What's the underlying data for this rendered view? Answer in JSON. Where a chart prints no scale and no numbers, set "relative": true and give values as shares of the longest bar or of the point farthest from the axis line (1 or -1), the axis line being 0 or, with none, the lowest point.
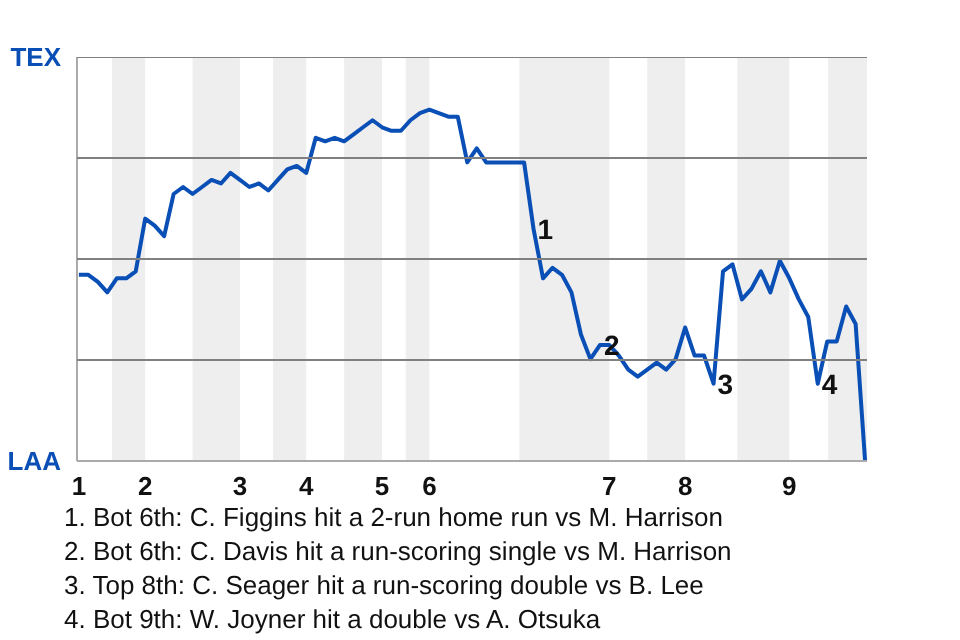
{
  "chart_data": {
    "type": "line",
    "marker": "none",
    "line_style": "solid",
    "grid": "y",
    "relative": true,
    "categories": [
      "1",
      null,
      null,
      null,
      null,
      null,
      null,
      "2",
      null,
      null,
      null,
      null,
      null,
      null,
      null,
      null,
      null,
      "3",
      null,
      null,
      null,
      null,
      null,
      null,
      "4",
      null,
      null,
      null,
      null,
      null,
      null,
      null,
      "5",
      null,
      null,
      null,
      null,
      "6",
      null,
      null,
      null,
      null,
      null,
      null,
      null,
      null,
      null,
      null,
      null,
      null,
      null,
      null,
      null,
      null,
      null,
      null,
      "7",
      null,
      null,
      null,
      null,
      null,
      null,
      null,
      "8",
      null,
      null,
      null,
      null,
      null,
      null,
      null,
      null,
      null,
      null,
      "9",
      null,
      null,
      null,
      null,
      null,
      null,
      null,
      null
    ],
    "series": [
      {
        "color": "#0a4fb5",
        "values": [
          0.53,
          0.53,
          0.51,
          0.48,
          0.52,
          0.52,
          0.54,
          0.69,
          0.67,
          0.64,
          0.76,
          0.78,
          0.76,
          0.78,
          0.8,
          0.79,
          0.82,
          0.8,
          0.78,
          0.79,
          0.77,
          0.8,
          0.83,
          0.84,
          0.82,
          0.92,
          0.91,
          0.92,
          0.91,
          0.93,
          0.95,
          0.97,
          0.95,
          0.94,
          0.94,
          0.97,
          0.99,
          1.0,
          0.99,
          0.98,
          0.98,
          0.85,
          0.89,
          0.85,
          0.85,
          0.85,
          0.85,
          0.85,
          0.66,
          0.52,
          0.55,
          0.53,
          0.48,
          0.36,
          0.29,
          0.33,
          0.33,
          0.3,
          0.26,
          0.24,
          0.26,
          0.28,
          0.26,
          0.29,
          0.38,
          0.3,
          0.3,
          0.22,
          0.54,
          0.56,
          0.46,
          0.49,
          0.54,
          0.48,
          0.57,
          0.52,
          0.46,
          0.41,
          0.22,
          0.34,
          0.34,
          0.44,
          0.39,
          0.0
        ]
      }
    ],
    "annotations": [
      "TEX",
      "LAA",
      {
        "text": "1",
        "y": 0.66
      },
      {
        "text": "2",
        "y": 0.33
      },
      {
        "text": "3",
        "y": 0.22
      },
      {
        "text": "4",
        "y": 0.22
      },
      "1. Bot 6th: C. Figgins hit a 2-run home run vs M. Harrison",
      "2. Bot 6th: C. Davis hit a run-scoring single vs M. Harrison",
      "3. Top 8th: C. Seager hit a run-scoring double vs B. Lee",
      "4. Bot 9th: W. Joyner hit a double vs A. Otsuka"
    ]
  }
}
